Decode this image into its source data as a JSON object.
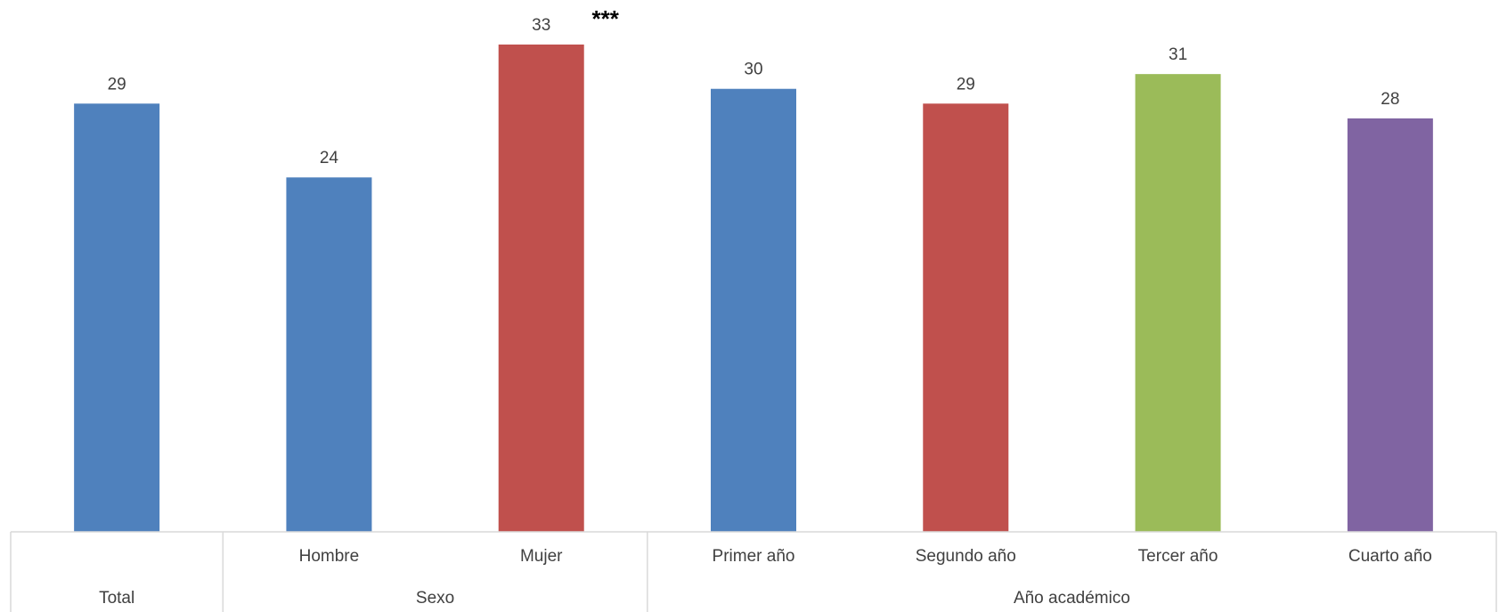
{
  "chart_data": {
    "type": "bar",
    "title": "",
    "xlabel": "",
    "ylabel": "",
    "ylim": [
      0,
      33
    ],
    "grid": false,
    "legend": "none",
    "categories": [
      "",
      "Hombre",
      "Mujer",
      "Primer año",
      "Segundo año",
      "Tercer año",
      "Cuarto año"
    ],
    "groups": [
      {
        "label": "Total",
        "categories": [
          ""
        ]
      },
      {
        "label": "Sexo",
        "categories": [
          "Hombre",
          "Mujer"
        ]
      },
      {
        "label": "Año académico",
        "categories": [
          "Primer año",
          "Segundo año",
          "Tercer año",
          "Cuarto año"
        ]
      }
    ],
    "values": [
      29,
      24,
      33,
      30,
      29,
      31,
      28
    ],
    "data_labels": [
      "29",
      "24",
      "33",
      "30",
      "29",
      "31",
      "28"
    ],
    "colors": [
      "#4f81bd",
      "#4f81bd",
      "#c0504d",
      "#4f81bd",
      "#c0504d",
      "#9bbb59",
      "#8064a2"
    ],
    "annotations": [
      {
        "category": "Mujer",
        "text": "***"
      }
    ]
  }
}
